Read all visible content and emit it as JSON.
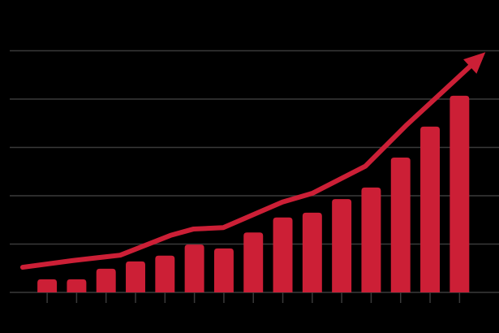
{
  "chart_data": {
    "type": "bar",
    "x": [
      1,
      2,
      3,
      4,
      5,
      6,
      7,
      8,
      9,
      10,
      11,
      12,
      13,
      14,
      15
    ],
    "values": [
      0.27,
      0.27,
      0.49,
      0.64,
      0.76,
      0.99,
      0.91,
      1.24,
      1.55,
      1.65,
      1.93,
      2.17,
      2.79,
      3.43,
      4.07
    ],
    "color": "#cc1f36",
    "trend": {
      "x": [
        0.17,
        1.88,
        3.48,
        5.19,
        5.96,
        6.98,
        8.99,
        10.0,
        11.8,
        13.18,
        15.88
      ],
      "values": [
        0.52,
        0.66,
        0.77,
        1.18,
        1.31,
        1.34,
        1.87,
        2.05,
        2.61,
        3.45,
        4.97
      ],
      "color": "#cc1f36"
    },
    "xlim": [
      -0.27,
      16.34
    ],
    "ylim": [
      0,
      6.05
    ],
    "yticks": [
      0,
      1,
      2,
      3,
      4,
      5
    ],
    "grid": true,
    "background": "#000000",
    "grid_color": "#3a3a3a"
  }
}
